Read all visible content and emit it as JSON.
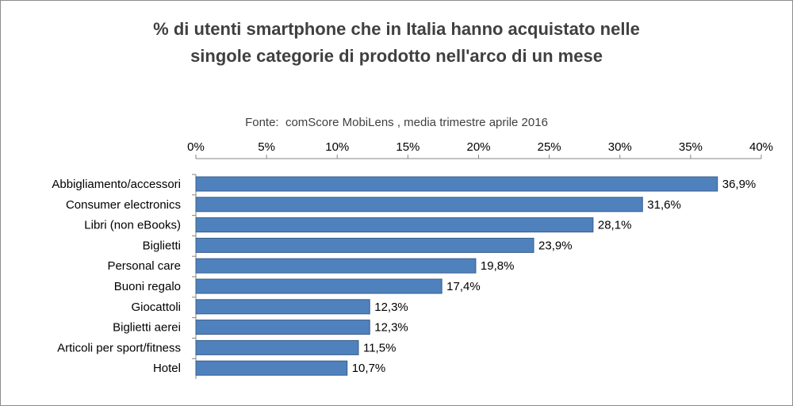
{
  "chart_data": {
    "type": "bar",
    "orientation": "horizontal",
    "title_lines": [
      "% di utenti smartphone che in Italia hanno acquistato nelle",
      "singole categorie di prodotto nell'arco di un mese"
    ],
    "subtitle": "Fonte:  comScore MobiLens , media trimestre aprile 2016",
    "categories": [
      "Abbigliamento/accessori",
      "Consumer electronics",
      "Libri (non eBooks)",
      "Biglietti",
      "Personal care",
      "Buoni regalo",
      "Giocattoli",
      "Biglietti aerei",
      "Articoli per sport/fitness",
      "Hotel"
    ],
    "values": [
      36.9,
      31.6,
      28.1,
      23.9,
      19.8,
      17.4,
      12.3,
      12.3,
      11.5,
      10.7
    ],
    "value_labels": [
      "36,9%",
      "31,6%",
      "28,1%",
      "23,9%",
      "19,8%",
      "17,4%",
      "12,3%",
      "12,3%",
      "11,5%",
      "10,7%"
    ],
    "xlim": [
      0,
      40
    ],
    "x_ticks": [
      0,
      5,
      10,
      15,
      20,
      25,
      30,
      35,
      40
    ],
    "x_tick_labels": [
      "0%",
      "5%",
      "10%",
      "15%",
      "20%",
      "25%",
      "30%",
      "35%",
      "40%"
    ],
    "axis_position": "top",
    "grid": false,
    "legend": "none",
    "bar_color": "#4f81bd",
    "bar_edge_color": "#385d8a"
  }
}
